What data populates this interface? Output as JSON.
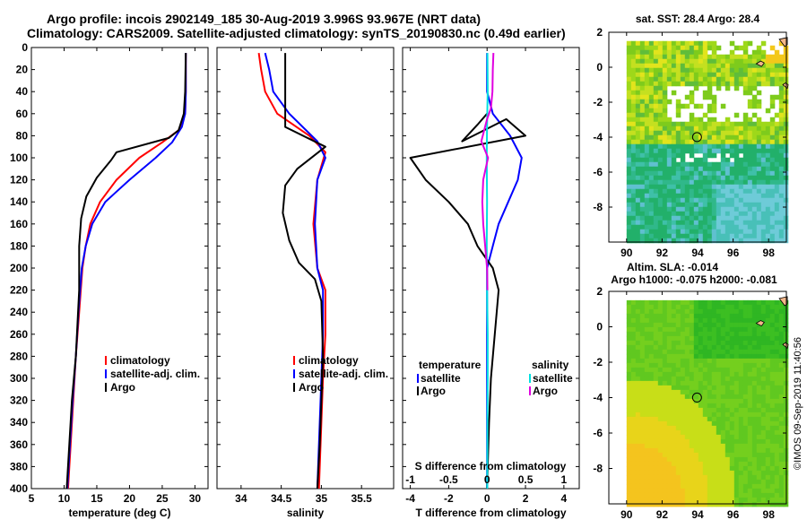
{
  "title": {
    "line1": "Argo profile: incois 2902149_185 30-Aug-2019 3.996S 93.967E (NRT data)",
    "line2": "Climatology: CARS2009. Satellite-adjusted climatology: synTS_20190830.nc (0.49d earlier)"
  },
  "colors": {
    "climatology": "#ff0000",
    "satellite": "#0000ff",
    "argo": "#000000",
    "sal_sat": "#00e0e0",
    "sal_argo": "#e000e0"
  },
  "chart_data": [
    {
      "type": "line",
      "id": "temperature",
      "xlabel": "temperature (deg C)",
      "ylabel": "",
      "xlim": [
        5,
        32
      ],
      "ylim": [
        400,
        0
      ],
      "xticks": [
        5,
        10,
        15,
        20,
        25,
        30
      ],
      "yticks": [
        0,
        20,
        40,
        60,
        80,
        100,
        120,
        140,
        160,
        180,
        200,
        220,
        240,
        260,
        280,
        300,
        320,
        340,
        360,
        380,
        400
      ],
      "legend": [
        "climatology",
        "satellite-adj. clim.",
        "Argo"
      ],
      "series": [
        {
          "name": "climatology",
          "color": "#ff0000",
          "points": [
            [
              28.6,
              5
            ],
            [
              28.6,
              40
            ],
            [
              28.5,
              60
            ],
            [
              27.5,
              75
            ],
            [
              25,
              86
            ],
            [
              21.5,
              100
            ],
            [
              18,
              120
            ],
            [
              15.5,
              140
            ],
            [
              14,
              160
            ],
            [
              13.3,
              180
            ],
            [
              12.8,
              200
            ],
            [
              12.3,
              240
            ],
            [
              11.8,
              280
            ],
            [
              11.4,
              320
            ],
            [
              11,
              360
            ],
            [
              10.6,
              400
            ]
          ]
        },
        {
          "name": "satellite-adj. clim.",
          "color": "#0000ff",
          "points": [
            [
              28.6,
              5
            ],
            [
              28.6,
              40
            ],
            [
              28.5,
              60
            ],
            [
              28,
              72
            ],
            [
              26.5,
              86
            ],
            [
              24,
              100
            ],
            [
              20,
              120
            ],
            [
              16.3,
              140
            ],
            [
              14.3,
              160
            ],
            [
              13.3,
              180
            ],
            [
              12.7,
              200
            ],
            [
              12.2,
              240
            ],
            [
              11.8,
              280
            ],
            [
              11.3,
              320
            ],
            [
              10.9,
              360
            ],
            [
              10.5,
              400
            ]
          ]
        },
        {
          "name": "Argo",
          "color": "#000000",
          "points": [
            [
              28.6,
              5
            ],
            [
              28.5,
              40
            ],
            [
              28.3,
              60
            ],
            [
              27.5,
              75
            ],
            [
              26,
              82
            ],
            [
              18,
              95
            ],
            [
              17.2,
              102
            ],
            [
              15,
              118
            ],
            [
              13.4,
              135
            ],
            [
              12.6,
              155
            ],
            [
              12.3,
              180
            ],
            [
              12.3,
              220
            ],
            [
              11.8,
              280
            ],
            [
              11.2,
              320
            ],
            [
              10.8,
              360
            ],
            [
              10.4,
              400
            ]
          ]
        }
      ]
    },
    {
      "type": "line",
      "id": "salinity",
      "xlabel": "salinity",
      "xlim": [
        33.7,
        35.9
      ],
      "ylim": [
        400,
        0
      ],
      "xticks": [
        34,
        34.5,
        35,
        35.5
      ],
      "xtick_labels": [
        "34",
        "34.5",
        "35",
        "35.5"
      ],
      "legend": [
        "climatology",
        "satellite-adj. clim.",
        "Argo"
      ],
      "series": [
        {
          "name": "climatology",
          "color": "#ff0000",
          "points": [
            [
              34.22,
              5
            ],
            [
              34.25,
              20
            ],
            [
              34.3,
              40
            ],
            [
              34.45,
              60
            ],
            [
              34.85,
              80
            ],
            [
              35.05,
              95
            ],
            [
              34.95,
              120
            ],
            [
              34.9,
              160
            ],
            [
              34.95,
              200
            ],
            [
              35.05,
              220
            ],
            [
              35.05,
              260
            ],
            [
              35.02,
              300
            ],
            [
              35,
              340
            ],
            [
              34.97,
              400
            ]
          ]
        },
        {
          "name": "satellite-adj. clim.",
          "color": "#0000ff",
          "points": [
            [
              34.3,
              5
            ],
            [
              34.35,
              20
            ],
            [
              34.4,
              40
            ],
            [
              34.6,
              60
            ],
            [
              34.95,
              85
            ],
            [
              35.05,
              100
            ],
            [
              34.95,
              120
            ],
            [
              34.92,
              160
            ],
            [
              34.95,
              200
            ],
            [
              35.02,
              220
            ],
            [
              35.02,
              260
            ],
            [
              35,
              300
            ],
            [
              34.98,
              340
            ],
            [
              34.95,
              400
            ]
          ]
        },
        {
          "name": "Argo",
          "color": "#000000",
          "points": [
            [
              34.55,
              5
            ],
            [
              34.55,
              60
            ],
            [
              34.55,
              72
            ],
            [
              35.05,
              90
            ],
            [
              34.7,
              110
            ],
            [
              34.55,
              125
            ],
            [
              34.52,
              150
            ],
            [
              34.6,
              175
            ],
            [
              34.72,
              195
            ],
            [
              34.92,
              210
            ],
            [
              35,
              230
            ],
            [
              35.02,
              280
            ],
            [
              35,
              320
            ],
            [
              34.98,
              360
            ],
            [
              34.95,
              400
            ]
          ]
        }
      ]
    },
    {
      "type": "line",
      "id": "difference",
      "xlabel": "T difference from climatology",
      "xlim": [
        -4.4,
        4.8
      ],
      "ylim": [
        400,
        0
      ],
      "xticks": [
        -4,
        -2,
        0,
        2,
        4
      ],
      "top_axis_label": "S difference from climatology",
      "top_ticks": [
        -1,
        -0.5,
        0,
        0.5,
        1
      ],
      "top_tick_labels": [
        "-1",
        "-0.5",
        "0",
        "0.5",
        "1"
      ],
      "legend_left_title": "temperature",
      "legend_right_title": "salinity",
      "legend_left": [
        "satellite",
        "Argo"
      ],
      "legend_right": [
        "satellite",
        "Argo"
      ],
      "series": [
        {
          "name": "T satellite",
          "color": "#0000ff",
          "points": [
            [
              0,
              5
            ],
            [
              0,
              40
            ],
            [
              0.3,
              60
            ],
            [
              1.2,
              80
            ],
            [
              1.8,
              100
            ],
            [
              1.6,
              120
            ],
            [
              1.1,
              140
            ],
            [
              0.6,
              160
            ],
            [
              0.3,
              180
            ],
            [
              0,
              200
            ],
            [
              0,
              240
            ],
            [
              0,
              300
            ],
            [
              0,
              360
            ],
            [
              0,
              400
            ]
          ]
        },
        {
          "name": "T Argo",
          "color": "#000000",
          "points": [
            [
              0,
              60
            ],
            [
              -0.5,
              70
            ],
            [
              -1.3,
              85
            ],
            [
              1.0,
              65
            ],
            [
              2.0,
              80
            ],
            [
              -4.0,
              100
            ],
            [
              -3.2,
              120
            ],
            [
              -2.0,
              140
            ],
            [
              -1.0,
              160
            ],
            [
              -0.5,
              180
            ],
            [
              0.3,
              200
            ],
            [
              0.6,
              220
            ],
            [
              0.4,
              260
            ],
            [
              0.2,
              300
            ],
            [
              0.1,
              340
            ],
            [
              0,
              400
            ]
          ]
        },
        {
          "name": "S satellite",
          "color": "#00e0e0",
          "points": [
            [
              0.02,
              5
            ],
            [
              0.03,
              40
            ],
            [
              0.0,
              70
            ],
            [
              -0.02,
              100
            ],
            [
              0.0,
              140
            ],
            [
              -0.02,
              180
            ],
            [
              0,
              220
            ],
            [
              0.03,
              260
            ],
            [
              0.03,
              300
            ],
            [
              0.02,
              340
            ],
            [
              0.01,
              400
            ]
          ]
        },
        {
          "name": "S Argo",
          "color": "#e000e0",
          "points": [
            [
              0.33,
              5
            ],
            [
              0.3,
              20
            ],
            [
              0.28,
              40
            ],
            [
              0.2,
              55
            ],
            [
              0.0,
              65
            ],
            [
              -0.15,
              75
            ],
            [
              -0.3,
              85
            ],
            [
              0.05,
              100
            ],
            [
              -0.2,
              120
            ],
            [
              -0.25,
              140
            ],
            [
              -0.2,
              160
            ],
            [
              -0.1,
              180
            ],
            [
              0,
              200
            ],
            [
              0.02,
              220
            ]
          ]
        }
      ]
    },
    {
      "type": "heatmap",
      "id": "sst_map",
      "title": "sat. SST: 28.4 Argo: 28.4",
      "xlim": [
        89,
        99
      ],
      "ylim": [
        -10,
        2
      ],
      "xticks": [
        90,
        92,
        94,
        96,
        98
      ],
      "yticks": [
        -8,
        -6,
        -4,
        -2,
        0,
        2
      ],
      "profile_location": [
        93.967,
        -3.996
      ]
    },
    {
      "type": "heatmap",
      "id": "sla_map",
      "title": "Altim. SLA: -0.014",
      "subtitle": "Argo h1000: -0.075 h2000: -0.081",
      "xlim": [
        89,
        99
      ],
      "ylim": [
        -10,
        2
      ],
      "xticks": [
        90,
        92,
        94,
        96,
        98
      ],
      "yticks": [
        -8,
        -6,
        -4,
        -2,
        0,
        2
      ],
      "profile_location": [
        93.967,
        -3.996
      ]
    }
  ],
  "watermark": "©IMOS 09-Sep-2019 11:40:56"
}
